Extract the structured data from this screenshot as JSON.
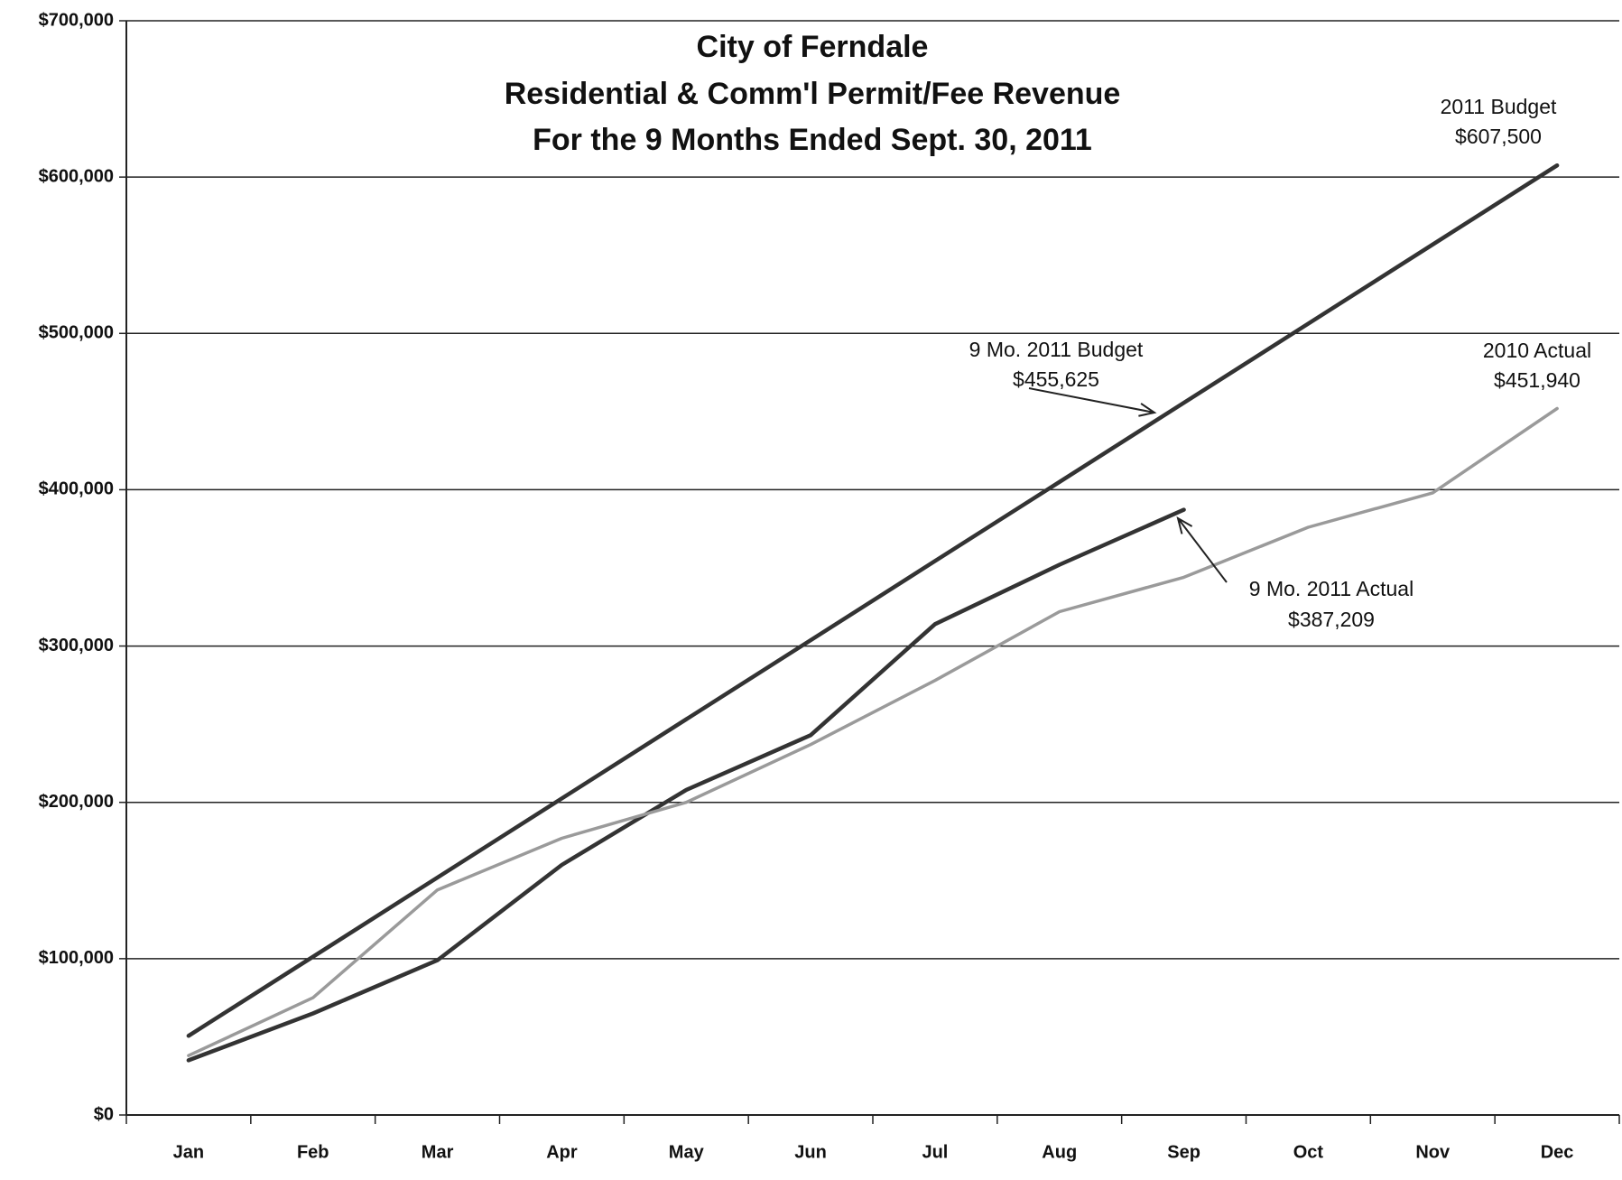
{
  "chart_data": {
    "type": "line",
    "title": [
      "City of Ferndale",
      "Residential & Comm'l Permit/Fee Revenue",
      "For the 9 Months Ended Sept. 30, 2011"
    ],
    "categories": [
      "Jan",
      "Feb",
      "Mar",
      "Apr",
      "May",
      "Jun",
      "Jul",
      "Aug",
      "Sep",
      "Oct",
      "Nov",
      "Dec"
    ],
    "series": [
      {
        "color": "#333333",
        "values": [
          50625,
          101250,
          151875,
          202500,
          253125,
          303750,
          354375,
          405000,
          455625,
          506250,
          556875,
          607500
        ],
        "value_labels": [
          null,
          null,
          null,
          null,
          null,
          null,
          null,
          null,
          "$455,625",
          null,
          null,
          "$607,500"
        ]
      },
      {
        "color": "#333333",
        "values": [
          35000,
          65000,
          99000,
          160000,
          208000,
          243000,
          314000,
          352000,
          387209,
          null,
          null,
          null
        ],
        "value_labels": [
          null,
          null,
          null,
          null,
          null,
          null,
          null,
          null,
          "$387,209",
          null,
          null,
          null
        ]
      },
      {
        "color": "#9a9a9a",
        "values": [
          38000,
          75000,
          144000,
          177000,
          200000,
          237000,
          278000,
          322000,
          344000,
          376000,
          398000,
          451940
        ],
        "value_labels": [
          null,
          null,
          null,
          null,
          null,
          null,
          null,
          null,
          null,
          null,
          null,
          "$451,940"
        ]
      }
    ],
    "annotations": [
      "2011 Budget",
      "9 Mo. 2011 Budget",
      "9 Mo. 2011 Actual",
      "2010 Actual"
    ],
    "ylim": [
      0,
      700000
    ],
    "yticks": [
      {
        "value": 0,
        "label": "$0"
      },
      {
        "value": 100000,
        "label": "$100,000"
      },
      {
        "value": 200000,
        "label": "$200,000"
      },
      {
        "value": 300000,
        "label": "$300,000"
      },
      {
        "value": 400000,
        "label": "$400,000"
      },
      {
        "value": 500000,
        "label": "$500,000"
      },
      {
        "value": 600000,
        "label": "$600,000"
      },
      {
        "value": 700000,
        "label": "$700,000"
      }
    ],
    "grid": true
  }
}
